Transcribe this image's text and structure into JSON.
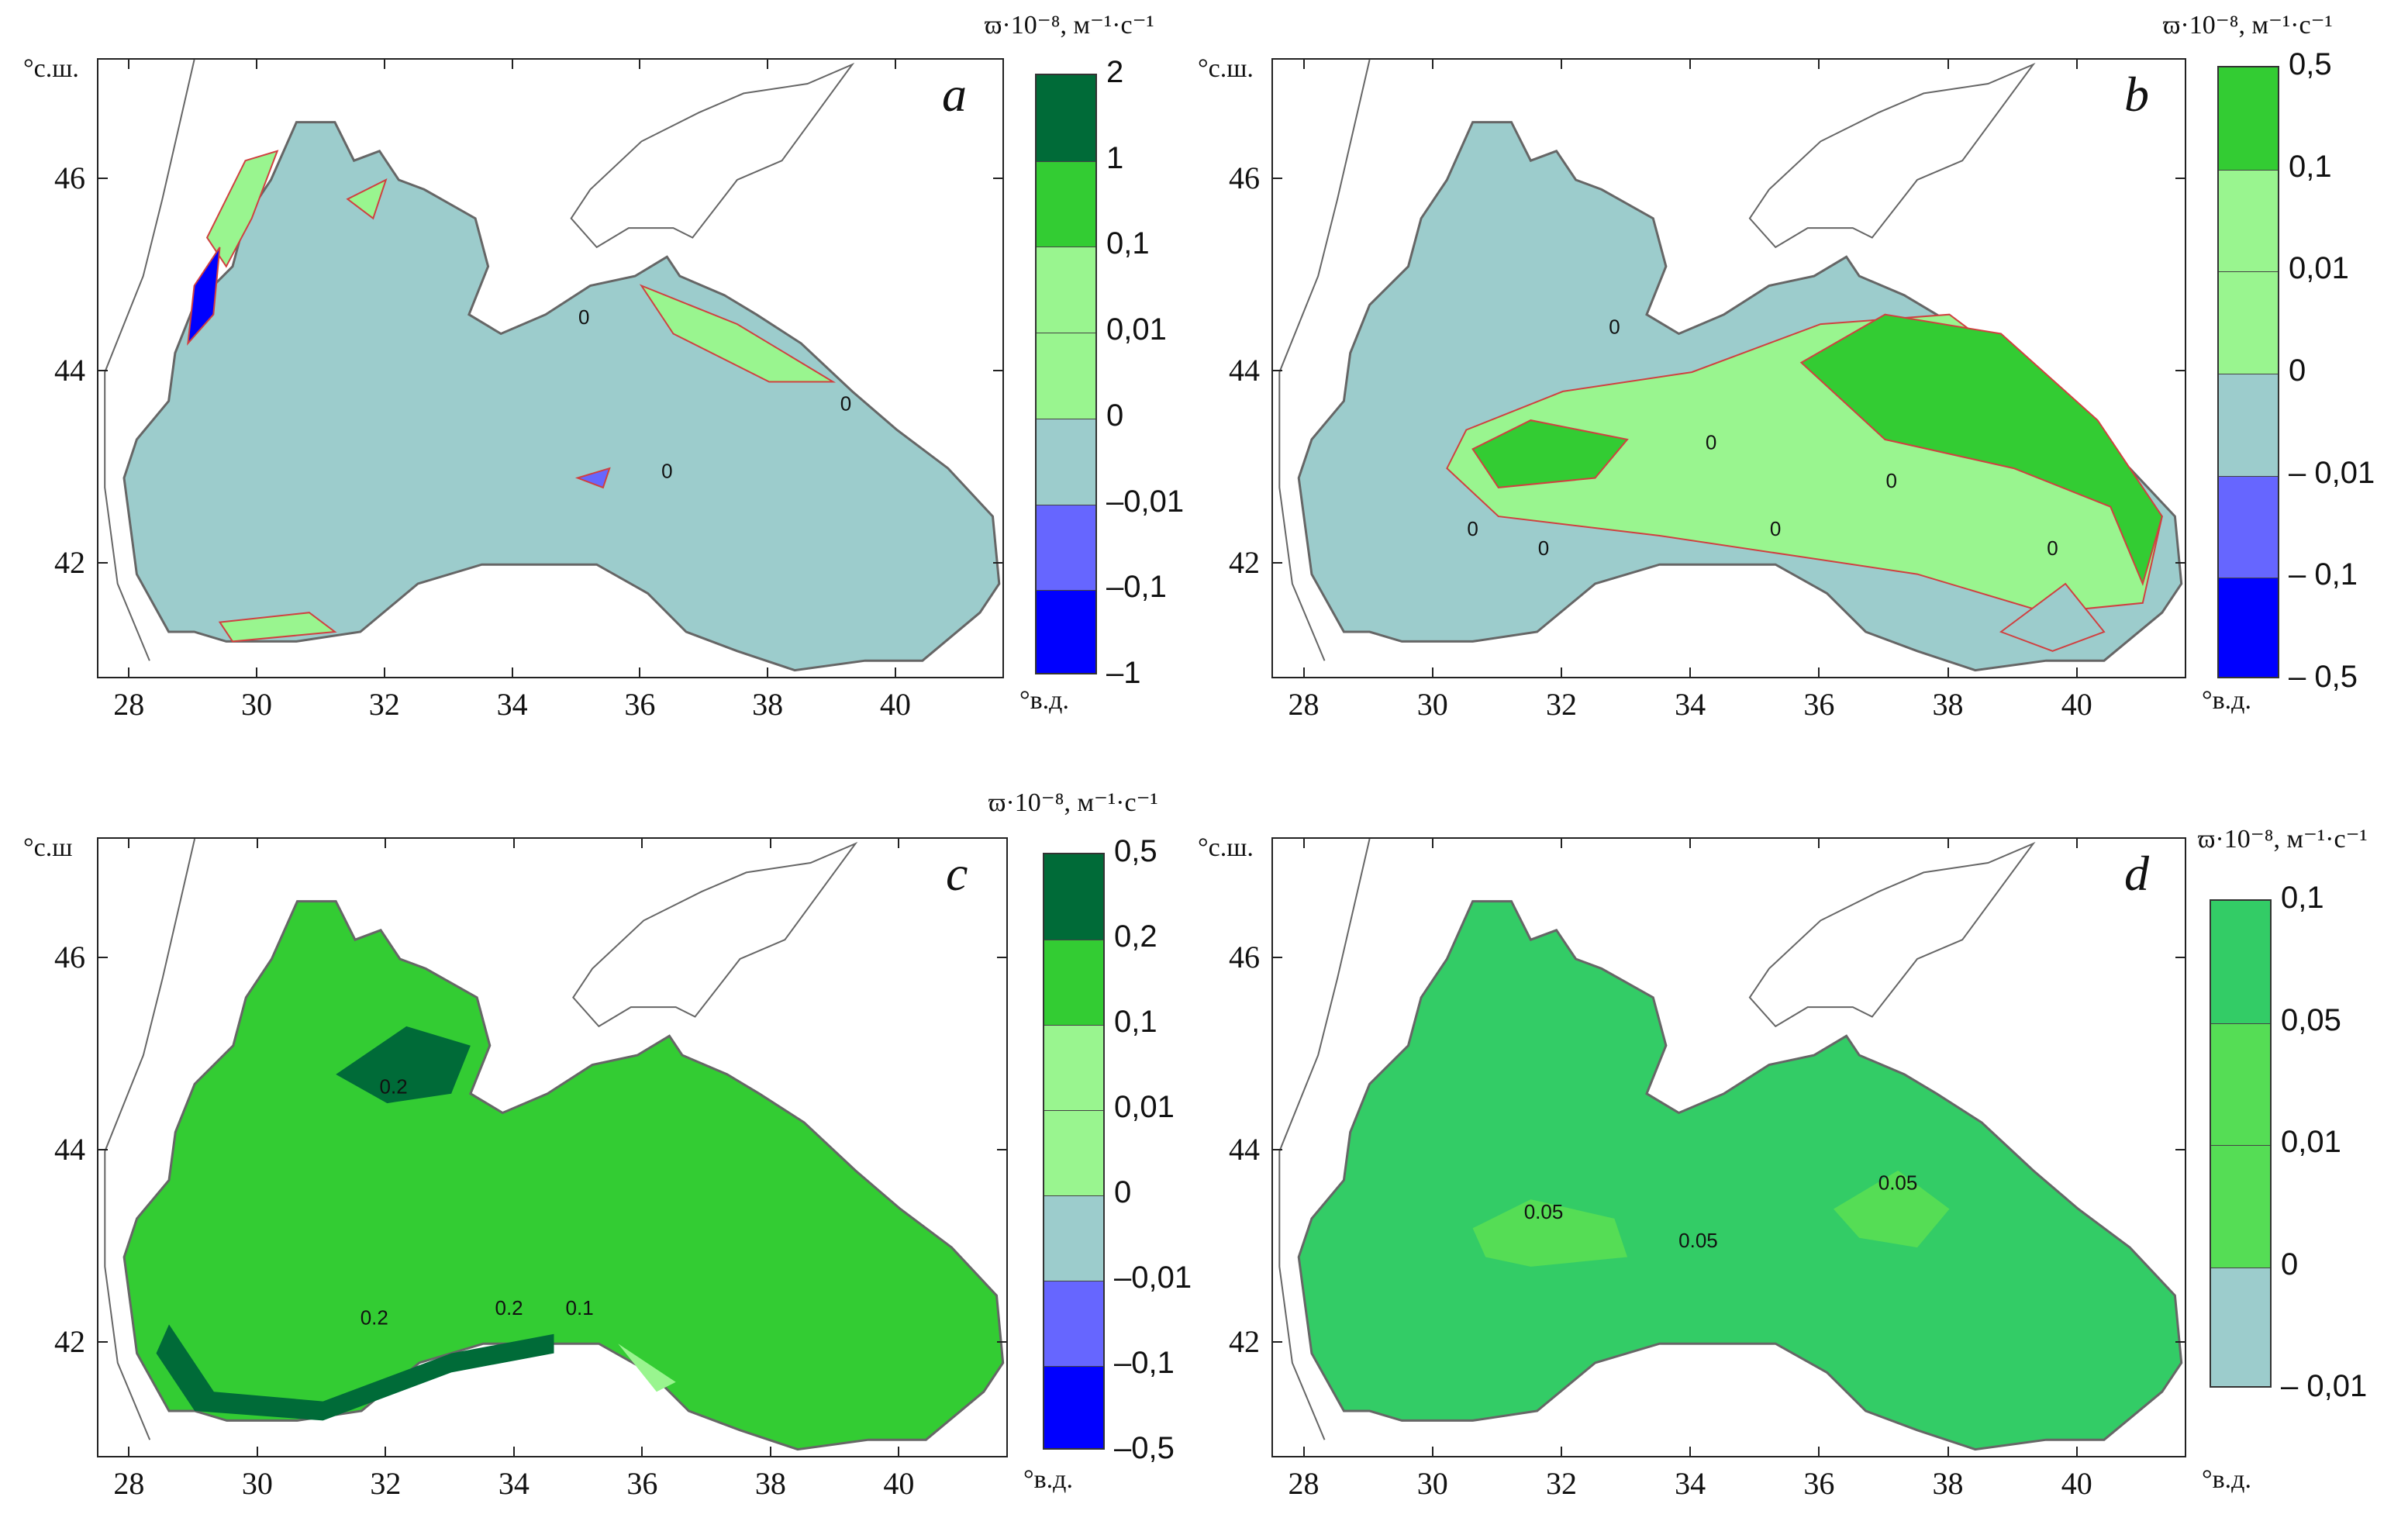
{
  "colors": {
    "dark_green": "#006b38",
    "green": "#33cc33",
    "light_green": "#99f58f",
    "sea_grey": "#9ccccc",
    "light_blue": "#6666ff",
    "blue": "#0000ff",
    "mid_green_d": "#33cc66",
    "green_d2": "#55dd55",
    "coast": "#666666",
    "contour_red": "#d04040"
  },
  "colorbar_title": "ϖ·10⁻⁸, м⁻¹·с⁻¹",
  "x_unit": "°в.д.",
  "x_ticks": [
    "28",
    "30",
    "32",
    "34",
    "36",
    "38",
    "40"
  ],
  "y_ticks": [
    "46",
    "44",
    "42"
  ],
  "panels": [
    {
      "letter": "a",
      "y_unit": "°с.ш.",
      "colorbar": {
        "labels": [
          "2",
          "1",
          "0,1",
          "0,01",
          "0",
          "–0,01",
          "–0,1",
          "–1"
        ],
        "colors": [
          "#006b38",
          "#33cc33",
          "#99f58f",
          "#99f58f",
          "#9ccccc",
          "#6666ff",
          "#0000ff"
        ]
      },
      "fill": "#9ccccc",
      "contour_labels": [
        "0",
        "0",
        "0"
      ]
    },
    {
      "letter": "b",
      "y_unit": "°с.ш.",
      "colorbar": {
        "labels": [
          "0,5",
          "0,1",
          "0,01",
          "0",
          "– 0,01",
          "– 0,1",
          "– 0,5"
        ],
        "colors": [
          "#33cc33",
          "#99f58f",
          "#99f58f",
          "#9ccccc",
          "#6666ff",
          "#0000ff"
        ]
      },
      "fill": "#9ccccc",
      "contour_labels": [
        "0",
        "0",
        "0",
        "0",
        "0",
        "0",
        "0"
      ]
    },
    {
      "letter": "c",
      "y_unit": "°с.ш",
      "colorbar": {
        "labels": [
          "0,5",
          "0,2",
          "0,1",
          "0,01",
          "0",
          "–0,01",
          "–0,1",
          "–0,5"
        ],
        "colors": [
          "#006b38",
          "#33cc33",
          "#99f58f",
          "#99f58f",
          "#9ccccc",
          "#6666ff",
          "#0000ff"
        ]
      },
      "fill": "#33cc33",
      "contour_labels": [
        "0.2",
        "0.2",
        "0.2",
        "0.1"
      ]
    },
    {
      "letter": "d",
      "y_unit": "°с.ш.",
      "colorbar": {
        "labels": [
          "0,1",
          "0,05",
          "0,01",
          "0",
          "– 0,01"
        ],
        "colors": [
          "#33cc66",
          "#55dd55",
          "#55dd55",
          "#9ccccc"
        ]
      },
      "fill": "#33cc66",
      "contour_labels": [
        "0.05",
        "0.05",
        "0.05"
      ]
    }
  ]
}
